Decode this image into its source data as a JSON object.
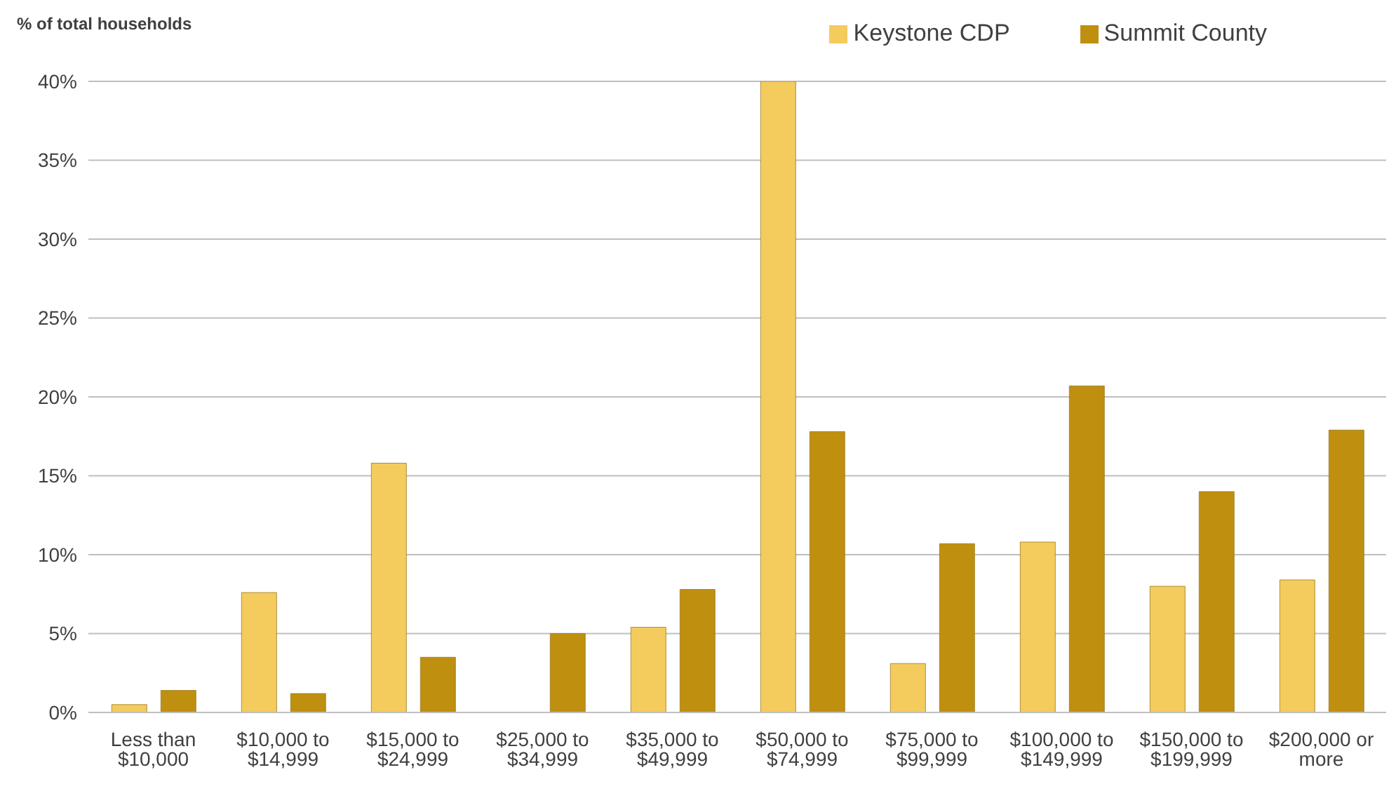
{
  "chart_data": {
    "type": "bar",
    "ylabel": "% of total households",
    "categories": [
      "Less than $10,000",
      "$10,000 to $14,999",
      "$15,000 to $24,999",
      "$25,000 to $34,999",
      "$35,000 to $49,999",
      "$50,000 to $74,999",
      "$75,000 to $99,999",
      "$100,000 to $149,999",
      "$150,000 to $199,999",
      "$200,000 or more"
    ],
    "series": [
      {
        "name": "Keystone CDP",
        "color": "#f4cb5d",
        "values": [
          0.5,
          7.6,
          15.8,
          0,
          5.4,
          40,
          3.1,
          10.8,
          8.0,
          8.4
        ]
      },
      {
        "name": "Summit County",
        "color": "#bf8f0f",
        "values": [
          1.4,
          1.2,
          3.5,
          5.0,
          7.8,
          17.8,
          10.7,
          20.7,
          14.0,
          17.9
        ]
      }
    ],
    "ylim": [
      0,
      40
    ],
    "yticks": [
      {
        "value": 0,
        "label": "0%"
      },
      {
        "value": 5,
        "label": "5%"
      },
      {
        "value": 10,
        "label": "10%"
      },
      {
        "value": 15,
        "label": "15%"
      },
      {
        "value": 20,
        "label": "20%"
      },
      {
        "value": 25,
        "label": "25%"
      },
      {
        "value": 30,
        "label": "30%"
      },
      {
        "value": 35,
        "label": "35%"
      },
      {
        "value": 40,
        "label": "40%"
      }
    ],
    "grid": "y",
    "legend": "top right"
  }
}
